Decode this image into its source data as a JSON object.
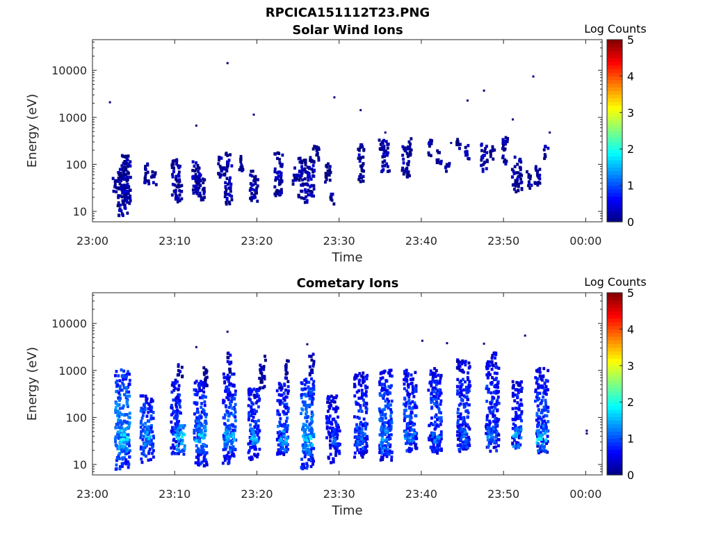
{
  "figure_title": "RPCICA151112T23.PNG",
  "chart_data": [
    {
      "type": "heatmap",
      "title": "Solar Wind Ions",
      "xlabel": "Time",
      "ylabel": "Energy (eV)",
      "x_ticks": [
        "23:00",
        "23:10",
        "23:20",
        "23:30",
        "23:40",
        "23:50",
        "00:00"
      ],
      "xlim_minutes": [
        0,
        62
      ],
      "y_scale": "log",
      "y_ticks": [
        "10",
        "100",
        "1000",
        "10000"
      ],
      "ylim": [
        6,
        45000
      ],
      "colorbar": {
        "label": "Log Counts",
        "range": [
          0,
          5
        ],
        "ticks": [
          "0",
          "1",
          "2",
          "3",
          "4",
          "5"
        ],
        "colormap": "jet"
      },
      "grid": false,
      "cell_minutes": 0.33,
      "cell_dex": 0.0667,
      "cells": [
        [
          3.5,
          25,
          0.1,
          6,
          16
        ],
        [
          3.7,
          70,
          0.2,
          5,
          14
        ],
        [
          4.0,
          45,
          0.2,
          5,
          15
        ],
        [
          2.5,
          40,
          0.0,
          3,
          6
        ],
        [
          6.5,
          70,
          0.1,
          4,
          8
        ],
        [
          7.3,
          50,
          0.0,
          3,
          6
        ],
        [
          10.0,
          55,
          0.2,
          5,
          14
        ],
        [
          10.3,
          30,
          0.1,
          4,
          8
        ],
        [
          12.5,
          60,
          0.2,
          5,
          12
        ],
        [
          13.0,
          35,
          0.2,
          5,
          10
        ],
        [
          15.5,
          100,
          0.1,
          4,
          8
        ],
        [
          16.3,
          40,
          0.2,
          5,
          14
        ],
        [
          16.3,
          140,
          0.1,
          3,
          5
        ],
        [
          18.0,
          120,
          0.1,
          3,
          6
        ],
        [
          19.5,
          40,
          0.2,
          5,
          12
        ],
        [
          22.5,
          70,
          0.2,
          5,
          16
        ],
        [
          24.5,
          60,
          0.1,
          3,
          6
        ],
        [
          25.5,
          50,
          0.2,
          6,
          16
        ],
        [
          26.5,
          60,
          0.2,
          5,
          14
        ],
        [
          27.0,
          200,
          0.1,
          4,
          6
        ],
        [
          28.5,
          70,
          0.1,
          4,
          8
        ],
        [
          29.0,
          20,
          0.1,
          3,
          4
        ],
        [
          32.5,
          150,
          0.2,
          4,
          10
        ],
        [
          32.5,
          50,
          0.1,
          3,
          4
        ],
        [
          35.5,
          150,
          0.2,
          5,
          12
        ],
        [
          35.0,
          300,
          0.1,
          3,
          5
        ],
        [
          38.0,
          120,
          0.2,
          5,
          12
        ],
        [
          38.5,
          260,
          0.1,
          3,
          6
        ],
        [
          41.0,
          250,
          0.1,
          3,
          6
        ],
        [
          42.0,
          150,
          0.1,
          3,
          6
        ],
        [
          43.0,
          100,
          0.1,
          3,
          5
        ],
        [
          44.3,
          300,
          0.1,
          3,
          4
        ],
        [
          45.5,
          200,
          0.1,
          3,
          6
        ],
        [
          47.5,
          150,
          0.2,
          4,
          10
        ],
        [
          48.5,
          200,
          0.1,
          3,
          6
        ],
        [
          50.0,
          220,
          0.2,
          4,
          10
        ],
        [
          51.5,
          70,
          0.2,
          6,
          14
        ],
        [
          53.0,
          50,
          0.1,
          3,
          6
        ],
        [
          54.0,
          60,
          0.1,
          4,
          8
        ],
        [
          55.0,
          200,
          0.1,
          3,
          5
        ]
      ],
      "points": [
        [
          2.0,
          2200
        ],
        [
          16.3,
          15000
        ],
        [
          19.5,
          1200
        ],
        [
          29.3,
          2800
        ],
        [
          32.5,
          1500
        ],
        [
          45.5,
          2400
        ],
        [
          47.5,
          3900
        ],
        [
          51.0,
          950
        ],
        [
          53.5,
          7800
        ],
        [
          12.5,
          700
        ],
        [
          35.5,
          500
        ],
        [
          55.5,
          500
        ],
        [
          43.5,
          300
        ]
      ]
    },
    {
      "type": "heatmap",
      "title": "Cometary Ions",
      "xlabel": "Time",
      "ylabel": "Energy (eV)",
      "x_ticks": [
        "23:00",
        "23:10",
        "23:20",
        "23:30",
        "23:40",
        "23:50",
        "00:00"
      ],
      "xlim_minutes": [
        0,
        62
      ],
      "y_scale": "log",
      "y_ticks": [
        "10",
        "100",
        "1000",
        "10000"
      ],
      "ylim": [
        6,
        45000
      ],
      "colorbar": {
        "label": "Log Counts",
        "range": [
          0,
          5
        ],
        "ticks": [
          "0",
          "1",
          "2",
          "3",
          "4",
          "5"
        ],
        "colormap": "jet"
      },
      "grid": false,
      "cell_minutes": 0.33,
      "cell_dex": 0.0667,
      "cells": [
        [
          3.5,
          100,
          1.3,
          9,
          36
        ],
        [
          3.5,
          40,
          1.8,
          6,
          12
        ],
        [
          6.5,
          60,
          1.1,
          8,
          24
        ],
        [
          6.5,
          40,
          1.5,
          5,
          8
        ],
        [
          10.0,
          120,
          0.8,
          6,
          28
        ],
        [
          10.5,
          40,
          1.6,
          6,
          12
        ],
        [
          10.5,
          1200,
          0.2,
          3,
          6
        ],
        [
          13.0,
          80,
          1.0,
          8,
          30
        ],
        [
          13.0,
          40,
          1.7,
          6,
          12
        ],
        [
          13.5,
          800,
          0.3,
          3,
          8
        ],
        [
          16.5,
          100,
          1.0,
          8,
          32
        ],
        [
          16.5,
          40,
          1.6,
          6,
          10
        ],
        [
          16.5,
          1500,
          0.3,
          3,
          8
        ],
        [
          19.5,
          80,
          0.9,
          7,
          26
        ],
        [
          19.5,
          40,
          1.5,
          5,
          8
        ],
        [
          20.5,
          1000,
          0.2,
          4,
          12
        ],
        [
          23.0,
          100,
          0.9,
          7,
          26
        ],
        [
          23.0,
          40,
          1.6,
          6,
          10
        ],
        [
          23.5,
          1000,
          0.2,
          3,
          8
        ],
        [
          26.0,
          80,
          1.2,
          8,
          32
        ],
        [
          26.0,
          40,
          1.7,
          6,
          12
        ],
        [
          26.5,
          1500,
          0.3,
          3,
          8
        ],
        [
          29.0,
          60,
          0.7,
          7,
          24
        ],
        [
          29.5,
          35,
          1.0,
          5,
          10
        ],
        [
          32.5,
          120,
          0.8,
          8,
          30
        ],
        [
          32.5,
          40,
          1.2,
          6,
          10
        ],
        [
          35.5,
          120,
          1.0,
          8,
          32
        ],
        [
          35.5,
          40,
          1.4,
          6,
          12
        ],
        [
          38.5,
          150,
          0.9,
          8,
          30
        ],
        [
          38.5,
          40,
          1.3,
          6,
          10
        ],
        [
          41.5,
          150,
          0.9,
          8,
          30
        ],
        [
          41.5,
          40,
          1.2,
          6,
          10
        ],
        [
          45.0,
          200,
          0.8,
          8,
          32
        ],
        [
          45.0,
          40,
          1.2,
          6,
          10
        ],
        [
          48.5,
          250,
          0.8,
          8,
          34
        ],
        [
          48.5,
          40,
          1.3,
          6,
          10
        ],
        [
          51.5,
          120,
          0.8,
          6,
          24
        ],
        [
          51.5,
          40,
          1.6,
          5,
          8
        ],
        [
          54.5,
          150,
          0.9,
          8,
          30
        ],
        [
          54.5,
          40,
          1.7,
          6,
          10
        ]
      ],
      "points": [
        [
          16.3,
          7000
        ],
        [
          40.0,
          4500
        ],
        [
          43.0,
          4000
        ],
        [
          47.5,
          3900
        ],
        [
          52.5,
          5800
        ],
        [
          26.0,
          3800
        ],
        [
          12.5,
          3300
        ],
        [
          60.0,
          55
        ],
        [
          60.0,
          48
        ]
      ]
    }
  ]
}
